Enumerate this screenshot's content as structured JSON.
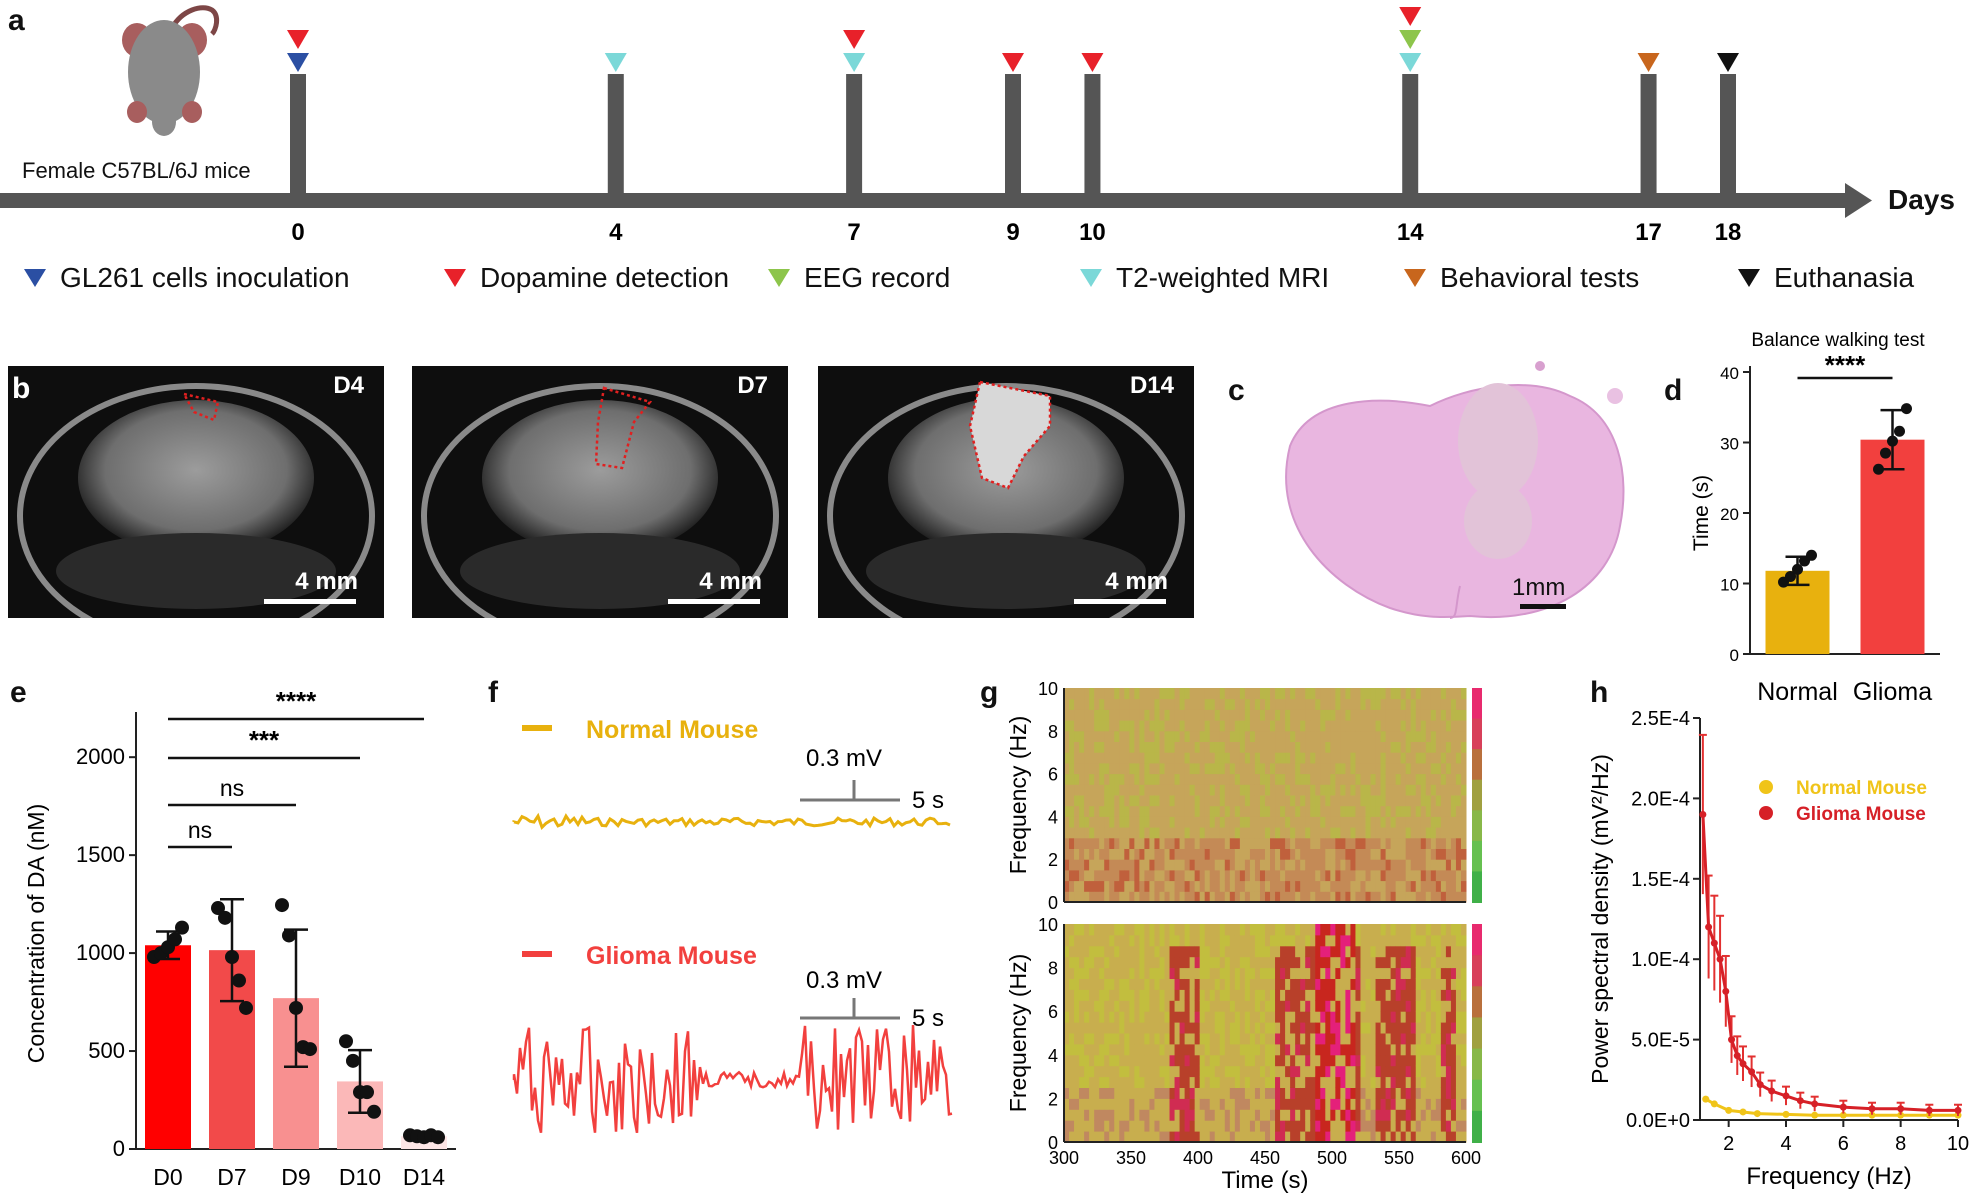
{
  "panel_labels": [
    "a",
    "b",
    "c",
    "d",
    "e",
    "f",
    "g",
    "h"
  ],
  "timeline": {
    "mouse_label": "Female C57BL/6J mice",
    "axis_label": "Days",
    "days": [
      {
        "day": "0",
        "markers": [
          "dopamine",
          "inoculation"
        ]
      },
      {
        "day": "4",
        "markers": [
          "mri"
        ]
      },
      {
        "day": "7",
        "markers": [
          "dopamine",
          "mri"
        ]
      },
      {
        "day": "9",
        "markers": [
          "dopamine"
        ]
      },
      {
        "day": "10",
        "markers": [
          "dopamine"
        ]
      },
      {
        "day": "14",
        "markers": [
          "dopamine",
          "eeg",
          "mri"
        ]
      },
      {
        "day": "17",
        "markers": [
          "behavior"
        ]
      },
      {
        "day": "18",
        "markers": [
          "euthanasia"
        ]
      }
    ],
    "marker_colors": {
      "inoculation": "#2b4fa3",
      "dopamine": "#e8212a",
      "eeg": "#8dc54b",
      "mri": "#7bd8d8",
      "behavior": "#c8661d",
      "euthanasia": "#111111"
    },
    "legend": [
      {
        "key": "inoculation",
        "label": "GL261 cells inoculation"
      },
      {
        "key": "dopamine",
        "label": "Dopamine detection"
      },
      {
        "key": "eeg",
        "label": "EEG record"
      },
      {
        "key": "mri",
        "label": "T2-weighted MRI"
      },
      {
        "key": "behavior",
        "label": "Behavioral tests"
      },
      {
        "key": "euthanasia",
        "label": "Euthanasia"
      }
    ]
  },
  "mri_panels": [
    {
      "day_label": "D4",
      "scale": "4 mm"
    },
    {
      "day_label": "D7",
      "scale": "4 mm"
    },
    {
      "day_label": "D14",
      "scale": "4 mm"
    }
  ],
  "histology": {
    "scale": "1mm"
  },
  "chart_data": [
    {
      "id": "d",
      "type": "bar",
      "title": "Balance walking test",
      "categories": [
        "Normal",
        "Glioma"
      ],
      "values": [
        11.8,
        30.4
      ],
      "errors": [
        2.0,
        4.2
      ],
      "points": [
        [
          10.2,
          11.0,
          12.0,
          13.2,
          14.0
        ],
        [
          26.2,
          28.5,
          30.2,
          31.6,
          34.8
        ]
      ],
      "colors": [
        "#e8b10e",
        "#f2403e"
      ],
      "ylabel": "Time (s)",
      "ylim": [
        0,
        40
      ],
      "yticks": [
        0,
        10,
        20,
        30,
        40
      ],
      "significance": "****"
    },
    {
      "id": "e",
      "type": "bar",
      "categories": [
        "D0",
        "D7",
        "D9",
        "D10",
        "D14"
      ],
      "values": [
        1040,
        1015,
        770,
        345,
        65
      ],
      "errors": [
        70,
        260,
        350,
        160,
        15
      ],
      "points": [
        [
          980,
          1000,
          1030,
          1070,
          1130
        ],
        [
          1230,
          1180,
          980,
          860,
          720
        ],
        [
          1245,
          1090,
          720,
          520,
          510
        ],
        [
          550,
          450,
          290,
          290,
          190
        ],
        [
          70,
          65,
          60,
          70,
          60
        ]
      ],
      "colors": [
        "#ff0000",
        "#f24a4a",
        "#f89090",
        "#fbb8b8",
        "#fde6e6"
      ],
      "ylabel": "Concentration of DA (nM)",
      "ylim": [
        0,
        2200
      ],
      "yticks": [
        0,
        500,
        1000,
        1500,
        2000
      ],
      "comparisons": [
        {
          "from": "D0",
          "to": "D7",
          "label": "ns"
        },
        {
          "from": "D0",
          "to": "D9",
          "label": "ns"
        },
        {
          "from": "D0",
          "to": "D10",
          "label": "***"
        },
        {
          "from": "D0",
          "to": "D14",
          "label": "****"
        }
      ]
    },
    {
      "id": "f",
      "type": "line",
      "series": [
        {
          "name": "Normal Mouse",
          "color": "#e8b10e"
        },
        {
          "name": "Glioma Mouse",
          "color": "#f2403e"
        }
      ],
      "scale_voltage": "0.3 mV",
      "scale_time": "5 s"
    },
    {
      "id": "g",
      "type": "heatmap",
      "xlabel": "Time (s)",
      "ylabel": "Frequency (Hz)",
      "xlim": [
        300,
        600
      ],
      "xticks": [
        300,
        350,
        400,
        450,
        500,
        550,
        600
      ],
      "ylim": [
        0,
        10
      ],
      "yticks": [
        0,
        2,
        4,
        6,
        8,
        10
      ]
    },
    {
      "id": "h",
      "type": "scatter",
      "xlabel": "Frequency (Hz)",
      "ylabel": "Power spectral density (mV²/Hz)",
      "xlim": [
        1,
        10
      ],
      "xticks": [
        2,
        4,
        6,
        8,
        10
      ],
      "ylim": [
        0,
        0.00025
      ],
      "ytick_labels": [
        "0.0E+0",
        "5.0E-5",
        "1.0E-4",
        "1.5E-4",
        "2.0E-4",
        "2.5E-4"
      ],
      "series": [
        {
          "name": "Normal Mouse",
          "color": "#f0c419",
          "x": [
            1.2,
            1.5,
            2.0,
            2.5,
            3.0,
            4.0,
            5.0,
            6.0,
            7.0,
            8.0,
            9.0,
            10.0
          ],
          "y": [
            1.3e-05,
            1e-05,
            6e-06,
            5e-06,
            4e-06,
            3.5e-06,
            3e-06,
            3e-06,
            3e-06,
            3e-06,
            3e-06,
            3e-06
          ]
        },
        {
          "name": "Glioma Mouse",
          "color": "#d62027",
          "x": [
            1.1,
            1.3,
            1.5,
            1.7,
            1.9,
            2.1,
            2.3,
            2.5,
            2.8,
            3.1,
            3.5,
            4.0,
            4.5,
            5.0,
            6.0,
            7.0,
            8.0,
            9.0,
            10.0
          ],
          "y": [
            0.00019,
            0.00012,
            0.00011,
            0.0001,
            8e-05,
            5e-05,
            4e-05,
            3.5e-05,
            3e-05,
            2.2e-05,
            1.8e-05,
            1.5e-05,
            1.2e-05,
            1e-05,
            8e-06,
            7e-06,
            7e-06,
            6e-06,
            6e-06
          ]
        }
      ]
    }
  ]
}
